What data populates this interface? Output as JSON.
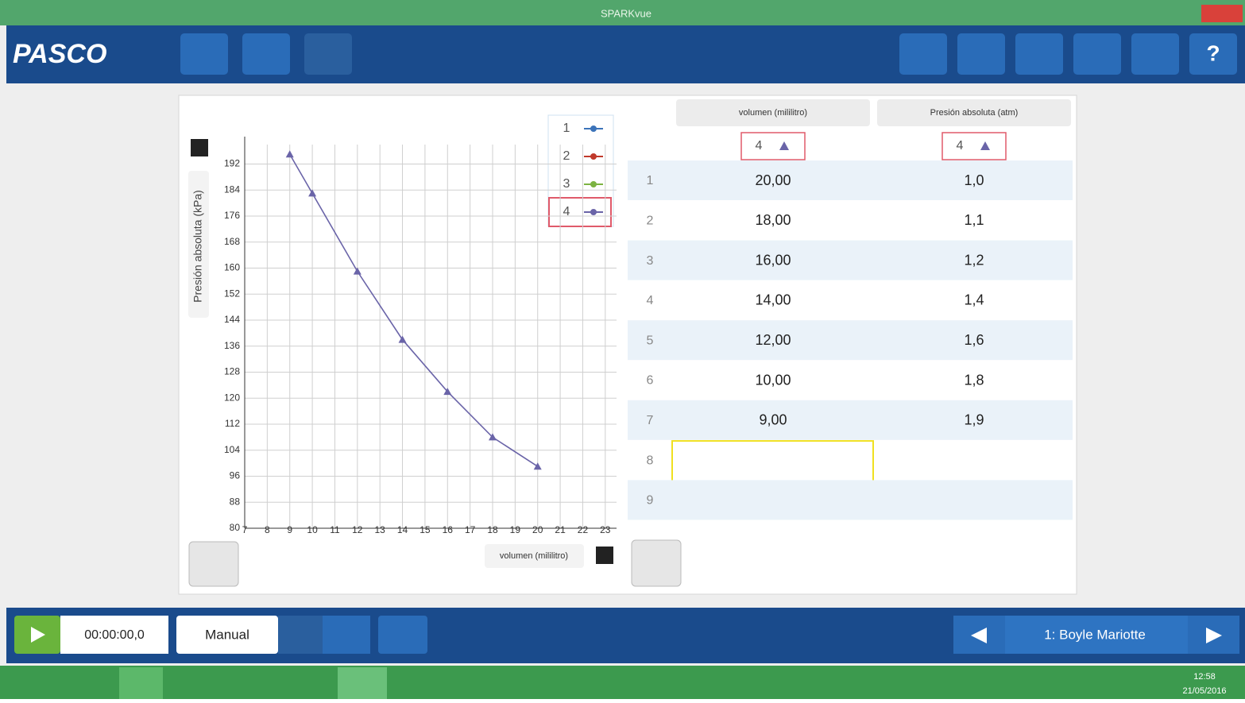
{
  "window": {
    "title": "SPARKvue"
  },
  "toolbar": {
    "logo": "PASCO",
    "help": "?"
  },
  "graph": {
    "type": "line",
    "y_label": "Presión absoluta (kPa)",
    "x_label": "volumen (mililitro)",
    "x": [
      9,
      10,
      12,
      14,
      16,
      18,
      20
    ],
    "values": [
      195,
      183,
      159,
      138,
      122,
      108,
      99
    ],
    "color": "#6a64a8",
    "xlim": [
      7,
      23.5
    ],
    "ylim": [
      80,
      198
    ],
    "xticks": [
      7,
      8,
      9,
      10,
      11,
      12,
      13,
      14,
      15,
      16,
      17,
      18,
      19,
      20,
      21,
      22,
      23
    ],
    "yticks": [
      80,
      88,
      96,
      104,
      112,
      120,
      128,
      136,
      144,
      152,
      160,
      168,
      176,
      184,
      192
    ],
    "grid": true,
    "legend": [
      {
        "name": "1",
        "color": "#3b73b9"
      },
      {
        "name": "2",
        "color": "#c0392b"
      },
      {
        "name": "3",
        "color": "#7cb342"
      },
      {
        "name": "4",
        "color": "#6a64a8"
      }
    ]
  },
  "table": {
    "headers": [
      "volumen (mililitro)",
      "Presión absoluta (atm)"
    ],
    "runs": [
      "4",
      "4"
    ],
    "rows": [
      [
        1,
        "20,00",
        "1,0"
      ],
      [
        2,
        "18,00",
        "1,1"
      ],
      [
        3,
        "16,00",
        "1,2"
      ],
      [
        4,
        "14,00",
        "1,4"
      ],
      [
        5,
        "12,00",
        "1,6"
      ],
      [
        6,
        "10,00",
        "1,8"
      ],
      [
        7,
        "9,00",
        "1,9"
      ],
      [
        8
      ],
      [
        9
      ]
    ]
  },
  "bottom": {
    "time": "00:00:00,0",
    "mode": "Manual",
    "experiment": "1: Boyle Mariotte"
  },
  "taskbar": {
    "time": "12:58",
    "date": "21/05/2016"
  }
}
